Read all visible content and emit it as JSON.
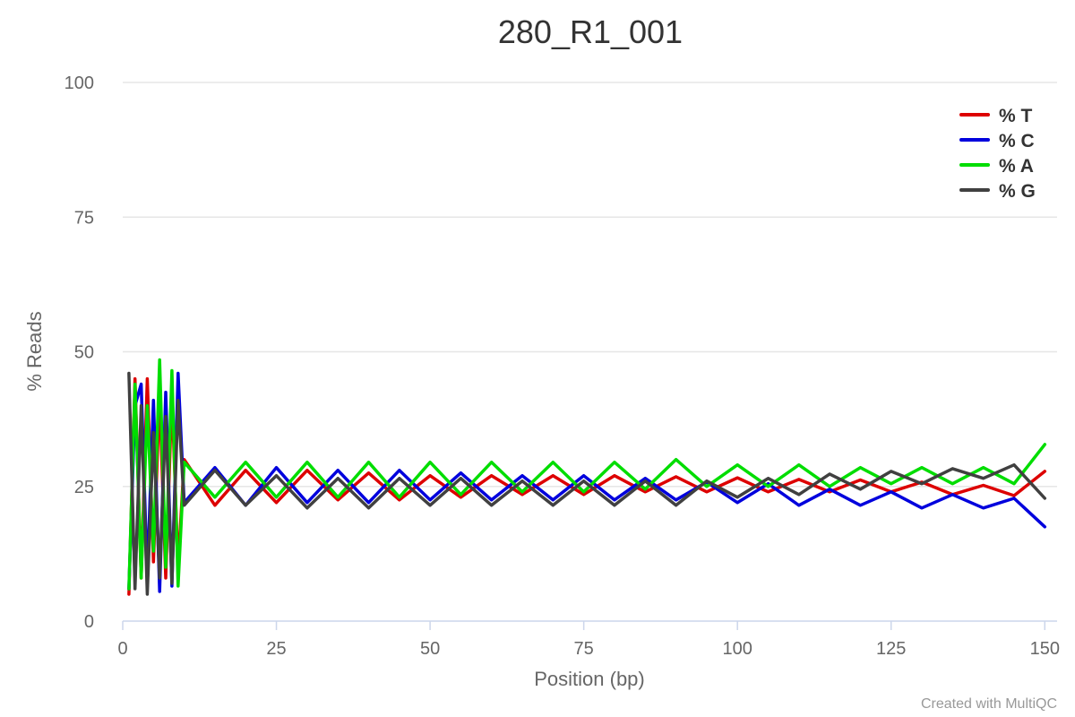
{
  "chart_data": {
    "type": "line",
    "title": "280_R1_001",
    "xlabel": "Position (bp)",
    "ylabel": "% Reads",
    "xlim": [
      0,
      152
    ],
    "ylim": [
      0,
      100
    ],
    "xticks": [
      "0",
      "25",
      "50",
      "75",
      "100",
      "125",
      "150"
    ],
    "yticks": [
      "0",
      "25",
      "50",
      "75",
      "100"
    ],
    "grid": true,
    "legend_position": "top-right",
    "credit": "Created with MultiQC",
    "x": [
      1,
      2,
      3,
      4,
      5,
      6,
      7,
      8,
      9,
      10,
      15,
      20,
      25,
      30,
      35,
      40,
      45,
      50,
      55,
      60,
      65,
      70,
      75,
      80,
      85,
      90,
      95,
      100,
      105,
      110,
      115,
      120,
      125,
      130,
      135,
      140,
      145,
      150
    ],
    "series": [
      {
        "name": "% T",
        "color": "#dd0000",
        "values": [
          5,
          45,
          8,
          45,
          11,
          42,
          8,
          42,
          10,
          30,
          21.5,
          28,
          22,
          28,
          22.5,
          27.5,
          22.5,
          27,
          23,
          27,
          23.5,
          27,
          23.5,
          27,
          24,
          26.8,
          24,
          26.6,
          24,
          26.3,
          24,
          26.2,
          24,
          25.8,
          23.5,
          25.2,
          23.3,
          27.8
        ]
      },
      {
        "name": "% C",
        "color": "#0000dd",
        "values": [
          6,
          40,
          44,
          8,
          41,
          5.5,
          42.5,
          6.5,
          46,
          22,
          28.5,
          21.5,
          28.5,
          22,
          28,
          22,
          28,
          22.5,
          27.5,
          22.5,
          27,
          22.5,
          27,
          22.5,
          26.5,
          22.5,
          25.8,
          22,
          25.5,
          21.5,
          24.5,
          21.5,
          24,
          21,
          23.5,
          21,
          22.8,
          17.5
        ]
      },
      {
        "name": "% A",
        "color": "#00dd00",
        "values": [
          6,
          44,
          8,
          40,
          13,
          48.5,
          10,
          46.5,
          6.5,
          29.5,
          23,
          29.5,
          23,
          29.5,
          23,
          29.5,
          23,
          29.5,
          23.5,
          29.5,
          24,
          29.5,
          24,
          29.5,
          24.5,
          30,
          25,
          29,
          25,
          29,
          25,
          28.5,
          25.5,
          28.5,
          25.5,
          28.5,
          25.5,
          32.8
        ]
      },
      {
        "name": "% G",
        "color": "#404040",
        "values": [
          46,
          6,
          40,
          5,
          35,
          8,
          38,
          7,
          41,
          21.5,
          28,
          21.5,
          27,
          21,
          26.5,
          21,
          26.5,
          21.5,
          26.5,
          21.5,
          26,
          21.5,
          26,
          21.5,
          26,
          21.5,
          26,
          23,
          26.5,
          23.5,
          27.3,
          24.5,
          27.8,
          25.5,
          28.3,
          26.5,
          29,
          22.8
        ]
      }
    ]
  }
}
